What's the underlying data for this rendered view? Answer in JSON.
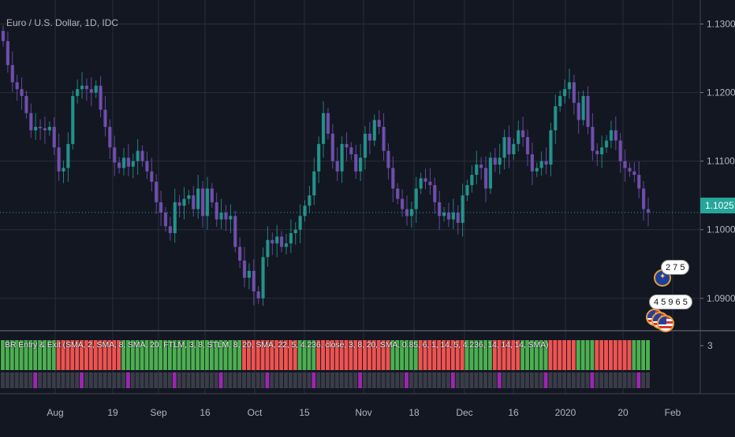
{
  "header": {
    "title": "Euro / U.S. Dollar, 1D, IDC"
  },
  "price_axis": {
    "labels": [
      "1.13000",
      "1.12000",
      "1.11000",
      "1.10000",
      "1.09000"
    ],
    "last_price": "1.10251",
    "last_price_color": "#26a69a"
  },
  "time_axis": {
    "labels": [
      "Aug",
      "19",
      "Sep",
      "16",
      "Oct",
      "15",
      "Nov",
      "18",
      "Dec",
      "16",
      "2020",
      "20",
      "Feb"
    ]
  },
  "indicator": {
    "label": "BR Entry & Exit (SMA, 2, SMA, 8, SMA, 20, FTLM, 3, 8, STLM, 8, 20, SMA, 22, 5, 4.236, close, 3, 8, 20, SMA, 0.85, 6, 1, 14, 5, 4.236, 14, 14, 14, SMA)",
    "scale_label": "3",
    "green_color": "#4caf50",
    "red_color": "#ef5350",
    "purple_color": "#9c27b0"
  },
  "events": {
    "eu_count": "2 7 5",
    "us_count": "4 5 9 6 5"
  },
  "colors": {
    "background": "#131722",
    "bull": "#26a69a",
    "bear": "#7e57c2",
    "grid": "#2a2e39"
  },
  "chart_data": {
    "type": "candlestick",
    "title": "Euro / U.S. Dollar, 1D, IDC",
    "ylim": [
      1.0855,
      1.1335
    ],
    "x_tick_labels": [
      "Aug",
      "19",
      "Sep",
      "16",
      "Oct",
      "15",
      "Nov",
      "18",
      "Dec",
      "16",
      "2020",
      "20",
      "Feb"
    ],
    "y_tick_labels": [
      "1.13000",
      "1.12000",
      "1.11000",
      "1.10000",
      "1.09000"
    ],
    "close": [
      1.1275,
      1.124,
      1.1215,
      1.1205,
      1.1195,
      1.117,
      1.1145,
      1.115,
      1.1148,
      1.1145,
      1.115,
      1.112,
      1.1085,
      1.109,
      1.1125,
      1.1195,
      1.1205,
      1.121,
      1.1205,
      1.12,
      1.121,
      1.1175,
      1.115,
      1.112,
      1.1098,
      1.109,
      1.1105,
      1.1092,
      1.11,
      1.1115,
      1.11,
      1.1085,
      1.107,
      1.104,
      1.1025,
      1.1005,
      1.0995,
      1.104,
      1.1035,
      1.1045,
      1.105,
      1.103,
      1.106,
      1.102,
      1.106,
      1.104,
      1.1015,
      1.1025,
      1.1015,
      1.102,
      1.0975,
      1.0955,
      1.093,
      1.094,
      1.091,
      1.09,
      1.096,
      1.0985,
      1.098,
      1.099,
      1.0975,
      1.098,
      1.0995,
      1.1,
      1.102,
      1.1035,
      1.105,
      1.1085,
      1.1125,
      1.117,
      1.114,
      1.11,
      1.1085,
      1.1125,
      1.112,
      1.111,
      1.1085,
      1.1105,
      1.114,
      1.113,
      1.116,
      1.115,
      1.1115,
      1.109,
      1.106,
      1.1045,
      1.103,
      1.102,
      1.103,
      1.106,
      1.1075,
      1.107,
      1.1065,
      1.104,
      1.102,
      1.1025,
      1.1015,
      1.1025,
      1.101,
      1.105,
      1.1065,
      1.108,
      1.1095,
      1.109,
      1.106,
      1.1105,
      1.1095,
      1.1105,
      1.1135,
      1.111,
      1.1125,
      1.1145,
      1.1135,
      1.111,
      1.1085,
      1.109,
      1.11,
      1.1095,
      1.1145,
      1.118,
      1.1195,
      1.1205,
      1.1215,
      1.1185,
      1.116,
      1.1195,
      1.115,
      1.1115,
      1.111,
      1.112,
      1.113,
      1.1145,
      1.113,
      1.11,
      1.109,
      1.1085,
      1.108,
      1.106,
      1.103,
      1.1025
    ]
  }
}
